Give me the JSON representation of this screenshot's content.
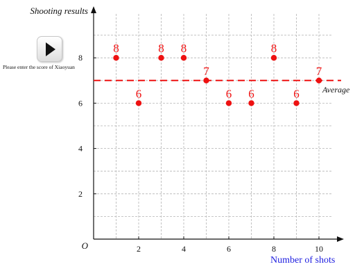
{
  "play_button": {
    "icon": "play-icon",
    "caption": "Please enter the score of Xiaoyuan"
  },
  "chart_data": {
    "type": "scatter",
    "ylabel": "Shooting results",
    "xlabel": "Number of shots",
    "origin_label": "O",
    "x_ticks": [
      2,
      4,
      6,
      8,
      10
    ],
    "y_ticks": [
      2,
      4,
      6,
      8
    ],
    "xlim": [
      0,
      10.6
    ],
    "ylim": [
      0,
      10
    ],
    "grid": true,
    "series": [
      {
        "x": [
          1,
          2,
          3,
          4,
          5,
          6,
          7,
          8,
          9,
          10
        ],
        "y": [
          8,
          6,
          8,
          8,
          7,
          6,
          6,
          8,
          6,
          7
        ],
        "color": "#ee1111"
      }
    ],
    "point_labels": [
      "8",
      "6",
      "8",
      "8",
      "7",
      "6",
      "6",
      "8",
      "6",
      "7"
    ],
    "reference_line": {
      "y": 7,
      "label": "Average",
      "style": "dashed",
      "color": "#ee1111"
    }
  }
}
